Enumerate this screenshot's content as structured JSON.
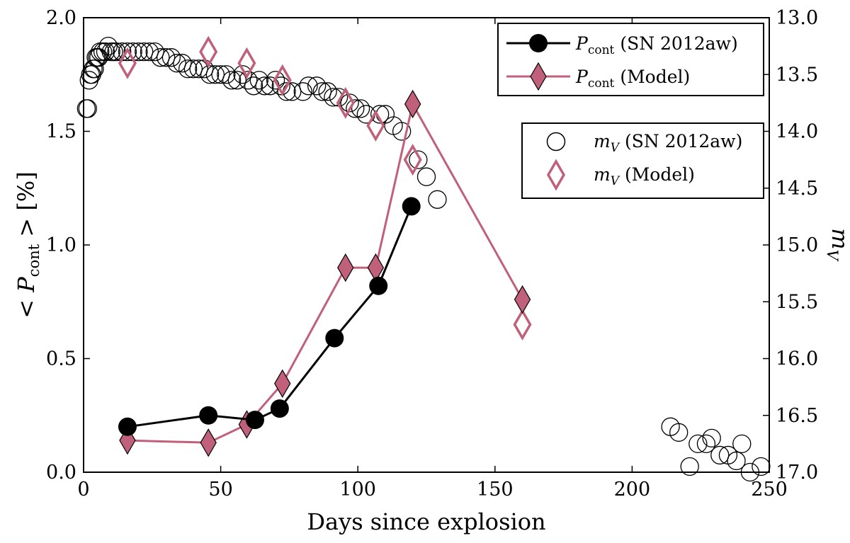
{
  "chart_data": {
    "type": "scatter",
    "title": "",
    "xlabel": "Days since explosion",
    "ylabel_left": "< P_cont > [%]",
    "ylabel_right": "m_V",
    "xlim": [
      0,
      250
    ],
    "ylim_left": [
      0.0,
      2.0
    ],
    "ylim_right": [
      13.0,
      17.0
    ],
    "right_axis_inverted": true,
    "grid": false,
    "x_ticks": [
      "0",
      "50",
      "100",
      "150",
      "200",
      "250"
    ],
    "y_left_ticks": [
      "0.0",
      "0.5",
      "1.0",
      "1.5",
      "2.0"
    ],
    "y_right_ticks": [
      "13.0",
      "13.5",
      "14.0",
      "14.5",
      "15.0",
      "15.5",
      "16.0",
      "16.5",
      "17.0"
    ],
    "legend_1_placement": "top-right",
    "legend_2_placement": "center-right",
    "series": [
      {
        "name": "P_cont (SN 2012aw)",
        "legend_label": "(SN 2012aw)",
        "axis": "left",
        "marker": "filled-circle",
        "line": true,
        "color": "#000000",
        "x": [
          16,
          45.5,
          62.5,
          71.5,
          91.5,
          107.5,
          119.5
        ],
        "y": [
          0.2,
          0.25,
          0.23,
          0.28,
          0.59,
          0.82,
          1.17
        ]
      },
      {
        "name": "P_cont (Model)",
        "legend_label": "(Model)",
        "axis": "left",
        "marker": "filled-diamond",
        "line": true,
        "color": "#c0607a",
        "x": [
          16,
          45.5,
          59.5,
          72.5,
          95.5,
          106.5,
          120,
          160
        ],
        "y": [
          0.14,
          0.13,
          0.21,
          0.39,
          0.9,
          0.9,
          1.62,
          0.76
        ]
      },
      {
        "name": "m_V (SN 2012aw)",
        "legend_label": "(SN 2012aw)",
        "axis": "right",
        "marker": "open-circle",
        "line": false,
        "color": "#000000",
        "x": [
          1,
          1.5,
          2,
          2.5,
          3,
          3.5,
          4,
          4.5,
          5,
          5.5,
          6,
          7,
          8,
          9,
          10,
          11,
          12,
          14,
          16,
          18,
          20,
          22,
          24,
          26,
          28,
          30,
          32,
          34,
          36,
          38,
          40,
          42,
          44,
          46,
          48,
          50,
          52,
          54,
          56,
          58,
          60,
          62,
          64,
          66,
          68,
          70,
          72,
          74,
          76,
          80,
          82,
          85,
          87,
          89,
          91,
          93,
          97,
          99,
          101,
          103,
          108,
          110,
          113,
          116,
          122,
          125,
          129,
          214,
          217,
          221,
          224,
          227,
          229,
          232,
          235,
          238,
          240,
          243,
          247
        ],
        "y": [
          13.8,
          13.8,
          13.55,
          13.5,
          13.5,
          13.45,
          13.45,
          13.35,
          13.35,
          13.35,
          13.3,
          13.3,
          13.3,
          13.25,
          13.3,
          13.3,
          13.3,
          13.3,
          13.3,
          13.3,
          13.3,
          13.3,
          13.3,
          13.3,
          13.35,
          13.35,
          13.35,
          13.4,
          13.4,
          13.45,
          13.45,
          13.45,
          13.45,
          13.5,
          13.5,
          13.5,
          13.5,
          13.55,
          13.55,
          13.5,
          13.55,
          13.6,
          13.55,
          13.6,
          13.6,
          13.55,
          13.6,
          13.65,
          13.65,
          13.65,
          13.6,
          13.6,
          13.65,
          13.65,
          13.7,
          13.7,
          13.75,
          13.8,
          13.8,
          13.85,
          13.85,
          13.85,
          13.95,
          14.0,
          14.25,
          14.4,
          14.6,
          16.6,
          16.65,
          16.95,
          16.75,
          16.75,
          16.7,
          16.85,
          16.85,
          16.9,
          16.75,
          17.0,
          16.95
        ]
      },
      {
        "name": "m_V (Model)",
        "legend_label": "(Model)",
        "axis": "right",
        "marker": "open-diamond",
        "line": false,
        "color": "#c0607a",
        "x": [
          16,
          45.5,
          59.5,
          72.5,
          95.5,
          106.5,
          120,
          160
        ],
        "y": [
          13.4,
          13.3,
          13.4,
          13.55,
          13.75,
          13.95,
          14.25,
          15.7
        ]
      }
    ]
  }
}
